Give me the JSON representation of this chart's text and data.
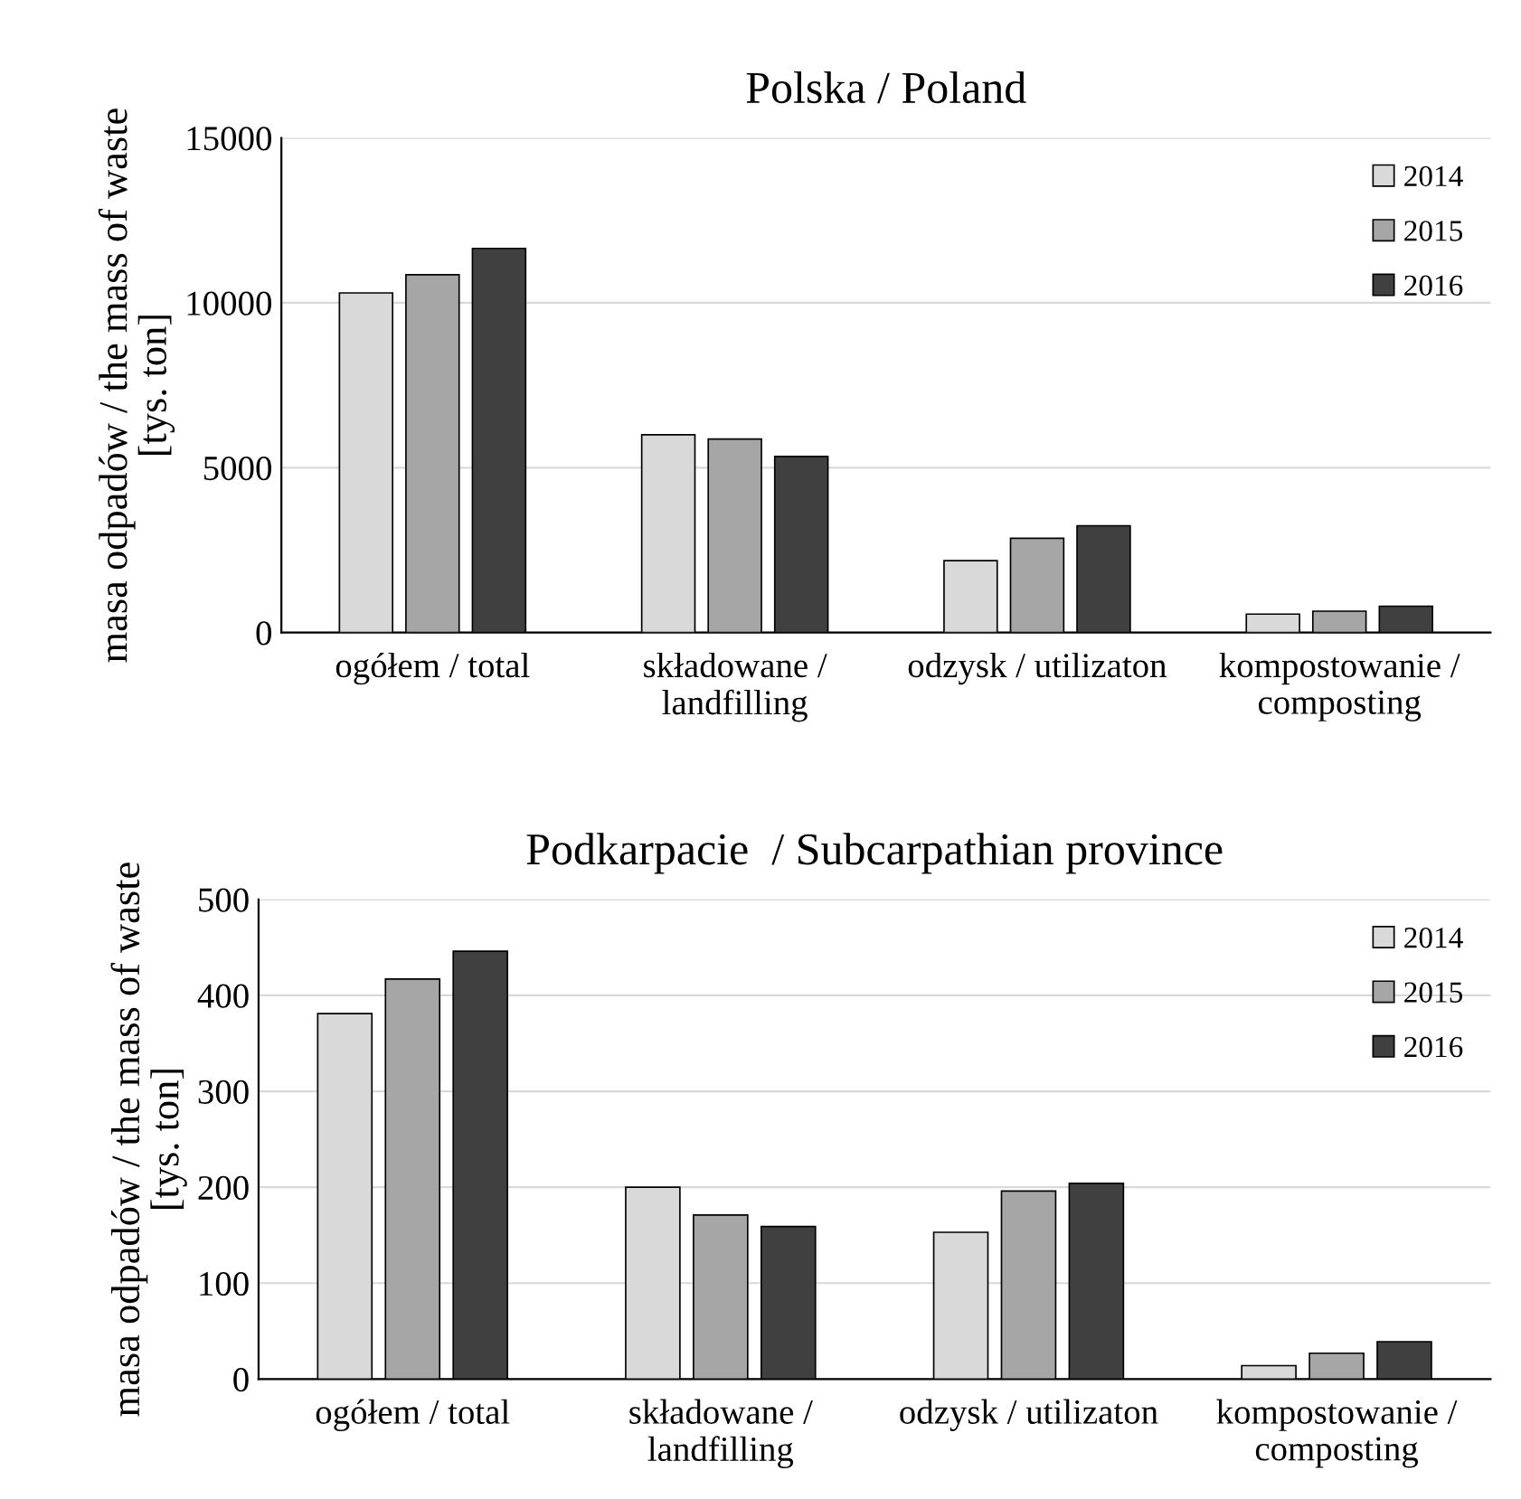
{
  "chart_data": [
    {
      "type": "bar",
      "title": "Polska / Poland",
      "ylabel": "masa odpadów / the mass of waste\n[tys. ton]",
      "categories": [
        "ogółem / total",
        "składowane /\nlandfilling",
        "odzysk / utilizaton",
        "kompostowanie /\ncomposting"
      ],
      "series": [
        {
          "name": "2014",
          "color": "#d9d9d9",
          "values": [
            10300,
            6000,
            2180,
            560
          ]
        },
        {
          "name": "2015",
          "color": "#a6a6a6",
          "values": [
            10850,
            5870,
            2860,
            650
          ]
        },
        {
          "name": "2016",
          "color": "#404040",
          "values": [
            11650,
            5340,
            3240,
            800
          ]
        }
      ],
      "ylim": [
        0,
        15000
      ],
      "yticks": [
        0,
        5000,
        10000,
        15000
      ],
      "grid": "y",
      "legend": "top right"
    },
    {
      "type": "bar",
      "title": "Podkarpacie  / Subcarpathian province",
      "ylabel": "masa odpadów / the mass of waste\n[tys. ton]",
      "categories": [
        "ogółem / total",
        "składowane /\nlandfilling",
        "odzysk / utilizaton",
        "kompostowanie /\ncomposting"
      ],
      "series": [
        {
          "name": "2014",
          "color": "#d9d9d9",
          "values": [
            381,
            200,
            153,
            14
          ]
        },
        {
          "name": "2015",
          "color": "#a6a6a6",
          "values": [
            417,
            171,
            196,
            27
          ]
        },
        {
          "name": "2016",
          "color": "#404040",
          "values": [
            446,
            159,
            204,
            39
          ]
        }
      ],
      "ylim": [
        0,
        500
      ],
      "yticks": [
        0,
        100,
        200,
        300,
        400,
        500
      ],
      "grid": "y",
      "legend": "top right"
    }
  ]
}
